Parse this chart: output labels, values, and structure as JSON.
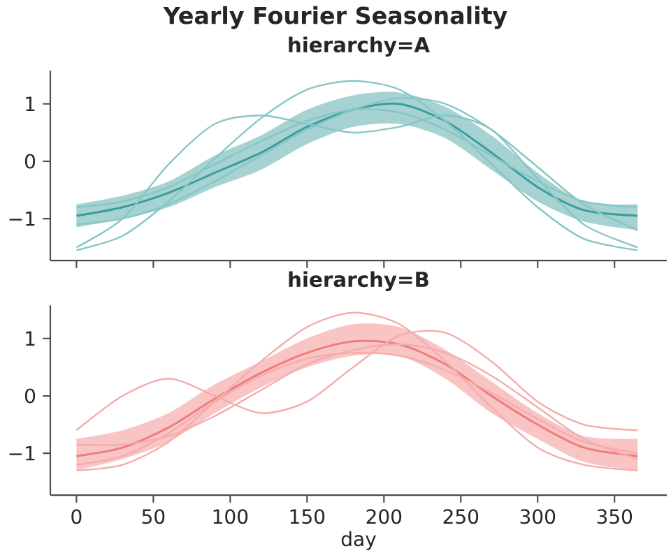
{
  "chart_data": [
    {
      "type": "line",
      "title": "Yearly Fourier Seasonality",
      "subtitle": "hierarchy=A",
      "x": [
        0,
        30,
        60,
        90,
        120,
        150,
        180,
        210,
        240,
        270,
        300,
        330,
        365
      ],
      "xlim": [
        -17,
        384
      ],
      "xticks": [
        0,
        50,
        100,
        150,
        200,
        250,
        300,
        350
      ],
      "ylim": [
        -1.73,
        1.58
      ],
      "yticks": [
        {
          "value": -1,
          "label": "−1"
        },
        0,
        1
      ],
      "tick_labels": "y",
      "marker": "none",
      "line_style": "solid",
      "series": [
        {
          "color": "#3a9c9c",
          "values": [
            -0.95,
            -0.8,
            -0.55,
            -0.2,
            0.15,
            0.6,
            0.9,
            1.0,
            0.7,
            0.15,
            -0.45,
            -0.85,
            -0.95
          ],
          "lower": [
            -1.15,
            -1.0,
            -0.8,
            -0.45,
            -0.15,
            0.3,
            0.6,
            0.65,
            0.4,
            -0.15,
            -0.7,
            -1.05,
            -1.2
          ],
          "upper": [
            -0.75,
            -0.6,
            -0.35,
            0.1,
            0.45,
            0.9,
            1.15,
            1.2,
            0.95,
            0.45,
            -0.2,
            -0.7,
            -0.75
          ]
        },
        {
          "color": "#86c6c6",
          "values": [
            -1.55,
            -1.3,
            -0.7,
            0.05,
            0.75,
            1.25,
            1.4,
            1.25,
            0.7,
            -0.05,
            -0.8,
            -1.35,
            -1.55
          ]
        },
        {
          "color": "#86c6c6",
          "values": [
            -1.5,
            -1.0,
            -0.05,
            0.65,
            0.8,
            0.65,
            0.5,
            0.6,
            0.8,
            0.55,
            -0.3,
            -1.1,
            -1.5
          ]
        },
        {
          "color": "#86c6c6",
          "values": [
            -1.1,
            -1.0,
            -0.75,
            -0.35,
            0.1,
            0.55,
            0.9,
            1.1,
            1.0,
            0.55,
            -0.1,
            -0.75,
            -1.2
          ]
        },
        {
          "color": "#86c6c6",
          "values": [
            -0.8,
            -0.7,
            -0.45,
            -0.05,
            0.35,
            0.7,
            0.9,
            0.85,
            0.55,
            0.1,
            -0.35,
            -0.7,
            -0.8
          ]
        }
      ]
    },
    {
      "type": "line",
      "title": "hierarchy=B",
      "xlabel": "day",
      "x": [
        0,
        30,
        60,
        90,
        120,
        150,
        180,
        210,
        240,
        270,
        300,
        330,
        365
      ],
      "xlim": [
        -17,
        384
      ],
      "xticks": [
        0,
        50,
        100,
        150,
        200,
        250,
        300,
        350
      ],
      "ylim": [
        -1.73,
        1.58
      ],
      "yticks": [
        {
          "value": -1,
          "label": "−1"
        },
        0,
        1
      ],
      "marker": "none",
      "line_style": "solid",
      "series": [
        {
          "color": "#ef7b7b",
          "values": [
            -1.05,
            -0.9,
            -0.55,
            -0.05,
            0.4,
            0.75,
            0.95,
            0.9,
            0.55,
            0.0,
            -0.5,
            -0.9,
            -1.05
          ],
          "lower": [
            -1.3,
            -1.1,
            -0.8,
            -0.3,
            0.15,
            0.5,
            0.7,
            0.7,
            0.3,
            -0.3,
            -0.75,
            -1.15,
            -1.3
          ],
          "upper": [
            -0.75,
            -0.6,
            -0.3,
            0.2,
            0.6,
            1.0,
            1.25,
            1.2,
            0.8,
            0.25,
            -0.3,
            -0.7,
            -0.75
          ]
        },
        {
          "color": "#f5acac",
          "values": [
            -0.6,
            0.0,
            0.3,
            0.0,
            -0.3,
            -0.1,
            0.5,
            1.05,
            1.1,
            0.6,
            -0.1,
            -0.5,
            -0.6
          ]
        },
        {
          "color": "#f5acac",
          "values": [
            -1.3,
            -1.2,
            -0.8,
            -0.1,
            0.6,
            1.2,
            1.45,
            1.25,
            0.6,
            -0.2,
            -0.9,
            -1.2,
            -1.3
          ]
        },
        {
          "color": "#f5acac",
          "values": [
            -1.2,
            -1.05,
            -0.65,
            -0.1,
            0.35,
            0.65,
            0.75,
            0.7,
            0.45,
            0.05,
            -0.4,
            -0.8,
            -1.0
          ]
        },
        {
          "color": "#f5acac",
          "values": [
            -0.85,
            -0.85,
            -0.7,
            -0.35,
            0.1,
            0.55,
            0.8,
            0.9,
            0.75,
            0.35,
            -0.2,
            -0.75,
            -1.1
          ]
        }
      ]
    }
  ]
}
